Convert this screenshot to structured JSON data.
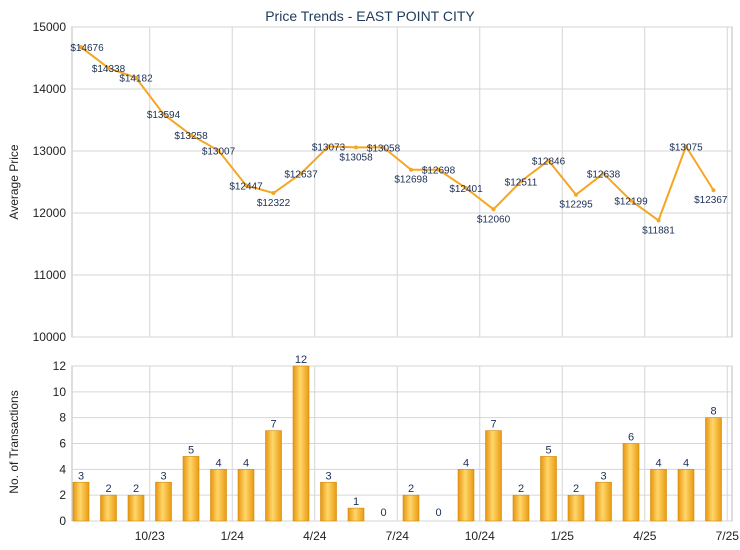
{
  "chart_data": [
    {
      "type": "line",
      "title": "Price Trends - EAST POINT CITY",
      "xlabel": "",
      "ylabel": "Average Price",
      "ylim": [
        10000,
        15000
      ],
      "yticks": [
        "10000",
        "11000",
        "12000",
        "13000",
        "14000",
        "15000"
      ],
      "x_tick_labels": [
        "10/23",
        "1/24",
        "4/24",
        "7/24",
        "10/24",
        "1/25",
        "4/25",
        "7/25"
      ],
      "grid": true,
      "color": "#f5a623",
      "values": [
        14676,
        14338,
        14182,
        13594,
        13258,
        13007,
        12447,
        12322,
        12637,
        13073,
        13058,
        13058,
        12698,
        12698,
        12401,
        12060,
        12511,
        12846,
        12295,
        12638,
        12199,
        11881,
        13075,
        12367
      ],
      "value_labels": [
        "$14676",
        "$14338",
        "$14182",
        "$13594",
        "$13258",
        "$13007",
        "$12447",
        "$12322",
        "$12637",
        "$13073",
        "$13058",
        "$13058",
        "$12698",
        "$12698",
        "$12401",
        "$12060",
        "$12511",
        "$12846",
        "$12295",
        "$12638",
        "$12199",
        "$11881",
        "$13075",
        "$12367"
      ]
    },
    {
      "type": "bar",
      "title": "",
      "xlabel": "",
      "ylabel": "No. of Transactions",
      "ylim": [
        0,
        12
      ],
      "yticks": [
        "0",
        "2",
        "4",
        "6",
        "8",
        "10",
        "12"
      ],
      "x_tick_labels": [
        "10/23",
        "1/24",
        "4/24",
        "7/24",
        "10/24",
        "1/25",
        "4/25",
        "7/25"
      ],
      "grid": true,
      "color": "#f5b731",
      "values": [
        3,
        2,
        2,
        3,
        5,
        4,
        4,
        7,
        12,
        3,
        1,
        0,
        2,
        0,
        4,
        7,
        2,
        5,
        2,
        3,
        6,
        4,
        4,
        8
      ]
    }
  ]
}
